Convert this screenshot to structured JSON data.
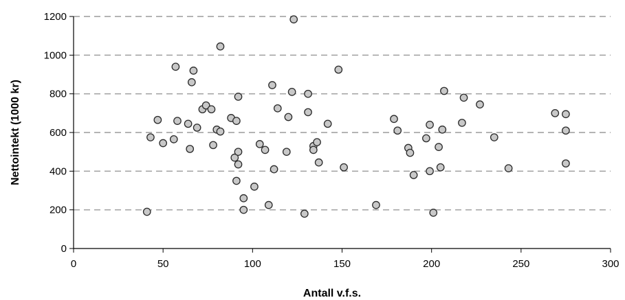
{
  "chart_data": {
    "type": "scatter",
    "title": "",
    "xlabel": "Antall v.f.s.",
    "ylabel": "Nettointekt (1000 kr)",
    "xlim": [
      0,
      300
    ],
    "ylim": [
      0,
      1200
    ],
    "xticks": [
      0,
      50,
      100,
      150,
      200,
      250,
      300
    ],
    "yticks": [
      0,
      200,
      400,
      600,
      800,
      1000,
      1200
    ],
    "grid": "horizontal dashed",
    "legend": "none",
    "colors": {
      "marker_fill": "#c8c8c8",
      "marker_stroke": "#2a2a2a",
      "grid": "#9a9a9a",
      "axis": "#000000"
    },
    "series": [
      {
        "points": [
          [
            41,
            190
          ],
          [
            43,
            575
          ],
          [
            47,
            665
          ],
          [
            50,
            545
          ],
          [
            56,
            565
          ],
          [
            57,
            940
          ],
          [
            58,
            660
          ],
          [
            64,
            645
          ],
          [
            65,
            515
          ],
          [
            66,
            860
          ],
          [
            67,
            920
          ],
          [
            69,
            625
          ],
          [
            72,
            720
          ],
          [
            74,
            740
          ],
          [
            77,
            720
          ],
          [
            78,
            535
          ],
          [
            80,
            615
          ],
          [
            82,
            1045
          ],
          [
            82,
            605
          ],
          [
            88,
            675
          ],
          [
            90,
            470
          ],
          [
            91,
            660
          ],
          [
            91,
            350
          ],
          [
            92,
            785
          ],
          [
            92,
            500
          ],
          [
            92,
            435
          ],
          [
            95,
            260
          ],
          [
            95,
            200
          ],
          [
            101,
            320
          ],
          [
            104,
            540
          ],
          [
            107,
            510
          ],
          [
            109,
            225
          ],
          [
            111,
            845
          ],
          [
            112,
            410
          ],
          [
            114,
            725
          ],
          [
            119,
            500
          ],
          [
            120,
            680
          ],
          [
            122,
            810
          ],
          [
            123,
            1185
          ],
          [
            129,
            180
          ],
          [
            131,
            800
          ],
          [
            131,
            705
          ],
          [
            134,
            530
          ],
          [
            134,
            510
          ],
          [
            136,
            550
          ],
          [
            137,
            445
          ],
          [
            142,
            645
          ],
          [
            148,
            925
          ],
          [
            151,
            420
          ],
          [
            169,
            225
          ],
          [
            179,
            670
          ],
          [
            181,
            610
          ],
          [
            187,
            520
          ],
          [
            188,
            495
          ],
          [
            190,
            380
          ],
          [
            197,
            570
          ],
          [
            199,
            640
          ],
          [
            199,
            400
          ],
          [
            201,
            185
          ],
          [
            204,
            525
          ],
          [
            205,
            420
          ],
          [
            206,
            615
          ],
          [
            207,
            815
          ],
          [
            217,
            650
          ],
          [
            218,
            780
          ],
          [
            227,
            745
          ],
          [
            235,
            575
          ],
          [
            243,
            415
          ],
          [
            269,
            700
          ],
          [
            275,
            695
          ],
          [
            275,
            610
          ],
          [
            275,
            440
          ]
        ]
      }
    ]
  }
}
